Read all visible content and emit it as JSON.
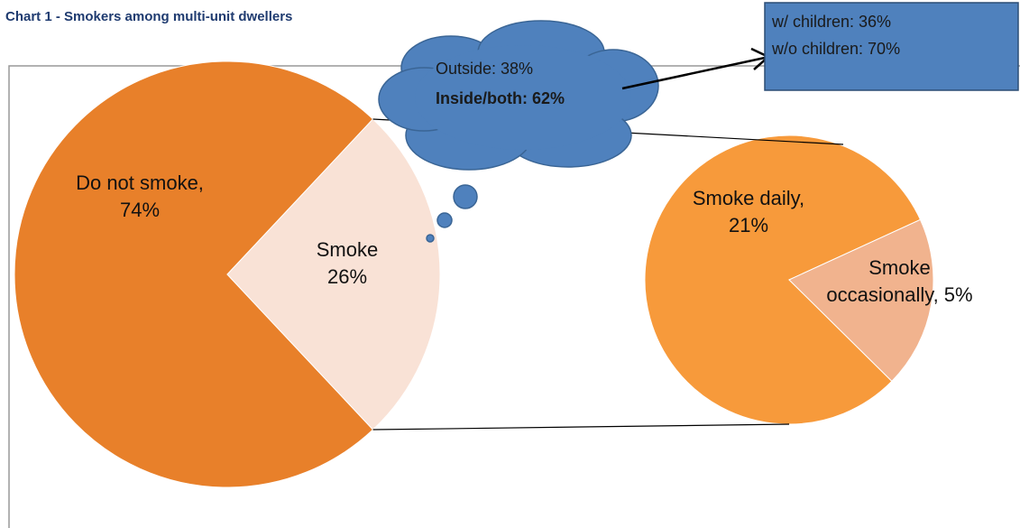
{
  "chart_data": [
    {
      "type": "pie",
      "title": "Chart 1  - Smokers among multi-unit dwellers",
      "categories": [
        "Do not smoke",
        "Smoke"
      ],
      "values": [
        74,
        26
      ],
      "value_labels": [
        "Do not smoke, 74%",
        "Smoke 26%"
      ],
      "colors": [
        "#e8802a",
        "#f9e2d6"
      ],
      "annotations": [
        "Outside: 38%",
        "Inside/both: 62%",
        "w/ children: 36%",
        "w/o children: 70%"
      ]
    },
    {
      "type": "pie",
      "categories": [
        "Smoke daily",
        "Smoke occasionally"
      ],
      "values": [
        21,
        5
      ],
      "value_labels": [
        "Smoke daily, 21%",
        "Smoke occasionally, 5%"
      ],
      "colors": [
        "#f79a3b",
        "#f1b38e"
      ]
    }
  ]
}
